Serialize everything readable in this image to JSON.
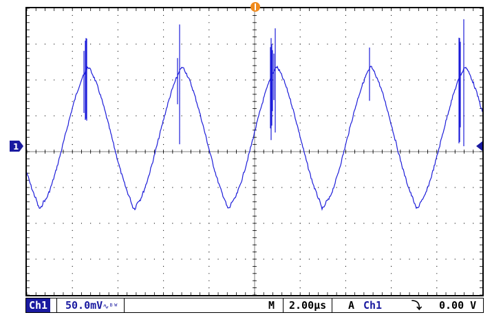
{
  "screen": {
    "trace_color": "#1c1cd9",
    "graticule_color": "#000000",
    "channel_marker_label": "1",
    "channel_marker_color": "#1a1aa0",
    "trigger_marker_color": "#f08a1c",
    "trigger_marker_icon": "trigger-position-icon",
    "trigger_level_icon": "trigger-level-arrow-icon"
  },
  "status_bar": {
    "channel": "Ch1",
    "volts_per_div": "50.0mV",
    "coupling_icon": "∿ᴮᵂ",
    "timebase_prefix": "M",
    "timebase": "2.00µs",
    "trigger_mode": "A",
    "trigger_source": "Ch1",
    "trigger_slope": "⤵",
    "trigger_level": "0.00 V"
  },
  "colors": {
    "channel": "#1a1aa0",
    "text": "#000000"
  }
}
